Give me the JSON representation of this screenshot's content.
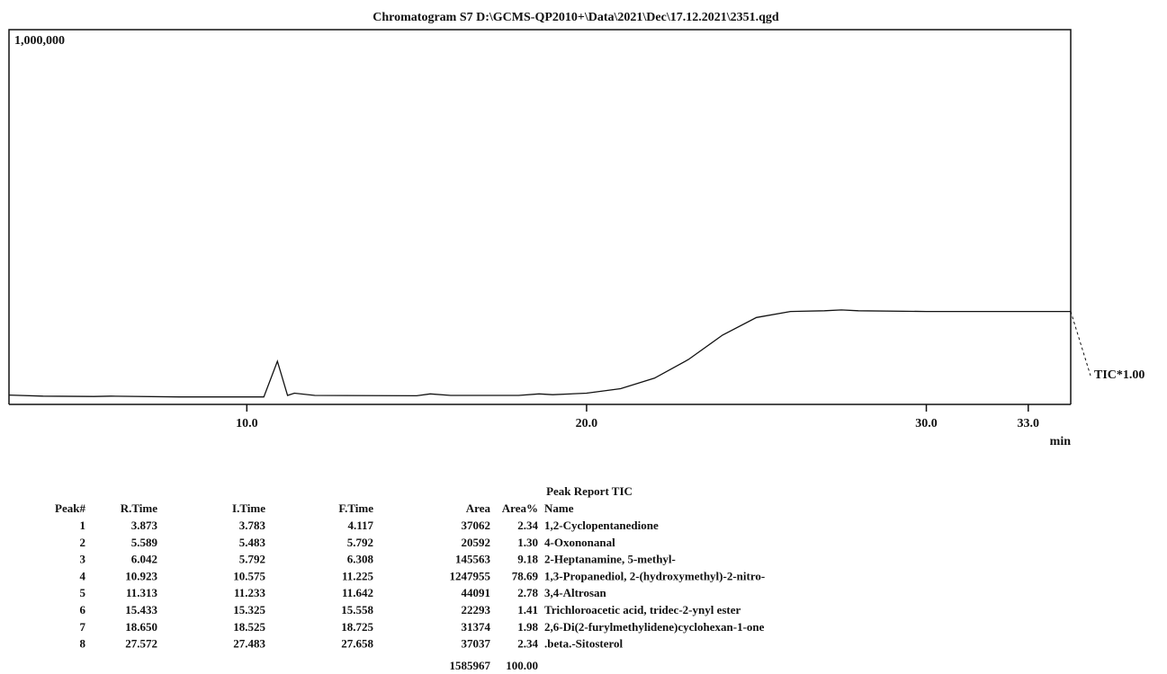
{
  "chart_data": {
    "type": "line",
    "title": "Chromatogram S7 D:\\GCMS-QP2010+\\Data\\2021\\Dec\\17.12.2021\\2351.qgd",
    "x_label": "min",
    "x": [
      3.0,
      4.0,
      5.5,
      6.0,
      8.0,
      10.5,
      10.9,
      11.2,
      11.4,
      12.0,
      15.0,
      15.4,
      16.0,
      18.0,
      18.6,
      19.0,
      20.0,
      21.0,
      22.0,
      23.0,
      24.0,
      25.0,
      26.0,
      27.0,
      27.5,
      28.0,
      30.0,
      32.0,
      34.25
    ],
    "series": [
      {
        "name": "TIC*1.00",
        "color": "#111111",
        "values": [
          25000,
          22000,
          21000,
          22000,
          20000,
          20000,
          115000,
          24000,
          30000,
          24000,
          23000,
          28000,
          24000,
          24000,
          28000,
          26000,
          30000,
          42000,
          70000,
          120000,
          185000,
          232000,
          248000,
          250000,
          252000,
          250000,
          248000,
          248000,
          248000
        ]
      }
    ],
    "xlim": [
      3.0,
      34.25
    ],
    "ylim": [
      0,
      1000000
    ],
    "xticks": [
      {
        "value": 10,
        "label": "10.0"
      },
      {
        "value": 20,
        "label": "20.0"
      },
      {
        "value": 30,
        "label": "30.0"
      },
      {
        "value": 33,
        "label": "33.0"
      }
    ],
    "yticks": [
      {
        "value": 1000000,
        "label": "1,000,000"
      }
    ]
  },
  "table": {
    "title": "Peak Report TIC",
    "columns": [
      "Peak#",
      "R.Time",
      "I.Time",
      "F.Time",
      "Area",
      "Area%",
      "Name"
    ],
    "rows": [
      [
        "1",
        "3.873",
        "3.783",
        "4.117",
        "37062",
        "2.34",
        "1,2-Cyclopentanedione"
      ],
      [
        "2",
        "5.589",
        "5.483",
        "5.792",
        "20592",
        "1.30",
        "4-Oxononanal"
      ],
      [
        "3",
        "6.042",
        "5.792",
        "6.308",
        "145563",
        "9.18",
        "2-Heptanamine, 5-methyl-"
      ],
      [
        "4",
        "10.923",
        "10.575",
        "11.225",
        "1247955",
        "78.69",
        "1,3-Propanediol, 2-(hydroxymethyl)-2-nitro-"
      ],
      [
        "5",
        "11.313",
        "11.233",
        "11.642",
        "44091",
        "2.78",
        "3,4-Altrosan"
      ],
      [
        "6",
        "15.433",
        "15.325",
        "15.558",
        "22293",
        "1.41",
        "Trichloroacetic acid, tridec-2-ynyl ester"
      ],
      [
        "7",
        "18.650",
        "18.525",
        "18.725",
        "31374",
        "1.98",
        "2,6-Di(2-furylmethylidene)cyclohexan-1-one"
      ],
      [
        "8",
        "27.572",
        "27.483",
        "27.658",
        "37037",
        "2.34",
        ".beta.-Sitosterol"
      ]
    ],
    "totals": [
      "1585967",
      "100.00"
    ]
  }
}
